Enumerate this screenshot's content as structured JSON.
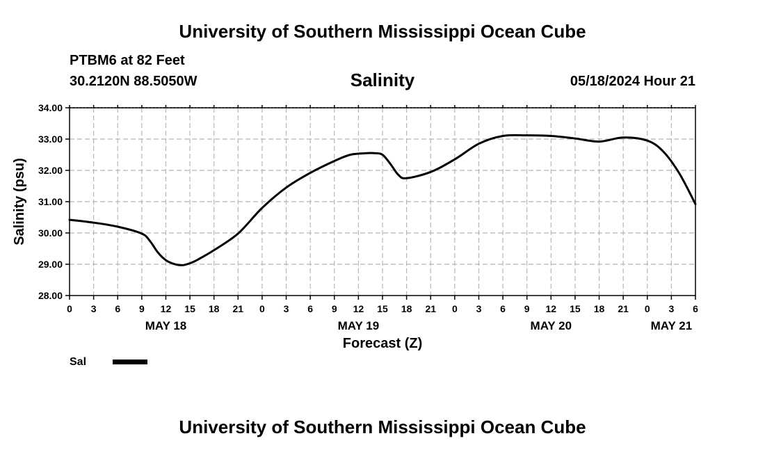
{
  "header": {
    "title": "University of Southern Mississippi Ocean Cube",
    "station": "PTBM6 at 82 Feet",
    "coordinates": "30.2120N  88.5050W",
    "variable": "Salinity",
    "timestamp": "05/18/2024 Hour 21"
  },
  "footer": {
    "title": "University of Southern Mississippi Ocean Cube"
  },
  "chart_data": {
    "type": "line",
    "title": "Salinity",
    "xlabel": "Forecast (Z)",
    "ylabel": "Salinity (psu)",
    "ylim": [
      28.0,
      34.0
    ],
    "yticks": [
      "28.00",
      "29.00",
      "30.00",
      "31.00",
      "32.00",
      "33.00",
      "34.00"
    ],
    "xlim_hours": [
      0,
      78
    ],
    "xticks": [
      "0",
      "3",
      "6",
      "9",
      "12",
      "15",
      "18",
      "21",
      "0",
      "3",
      "6",
      "9",
      "12",
      "15",
      "18",
      "21",
      "0",
      "3",
      "6",
      "9",
      "12",
      "15",
      "18",
      "21",
      "0",
      "3",
      "6"
    ],
    "day_labels": [
      {
        "label": "MAY 18",
        "hour": 12
      },
      {
        "label": "MAY 19",
        "hour": 36
      },
      {
        "label": "MAY 20",
        "hour": 60
      },
      {
        "label": "MAY 21",
        "hour": 75
      }
    ],
    "grid": true,
    "legend": {
      "position": "bottom-left",
      "entries": [
        "Sal"
      ]
    },
    "series": [
      {
        "name": "Sal",
        "color": "#000000",
        "x": [
          0,
          3,
          6,
          9,
          10,
          11,
          12,
          13,
          14,
          15,
          16,
          18,
          21,
          24,
          27,
          30,
          33,
          35,
          37,
          38,
          39,
          40,
          41,
          42,
          45,
          48,
          51,
          54,
          57,
          60,
          63,
          66,
          69,
          72,
          74,
          76,
          78
        ],
        "values": [
          30.42,
          30.33,
          30.2,
          29.98,
          29.75,
          29.38,
          29.13,
          29.01,
          28.97,
          29.03,
          29.15,
          29.45,
          29.98,
          30.8,
          31.45,
          31.92,
          32.3,
          32.5,
          32.55,
          32.55,
          32.5,
          32.2,
          31.85,
          31.75,
          31.95,
          32.35,
          32.85,
          33.1,
          33.12,
          33.1,
          33.02,
          32.92,
          33.05,
          32.95,
          32.6,
          31.9,
          30.92
        ]
      }
    ]
  }
}
